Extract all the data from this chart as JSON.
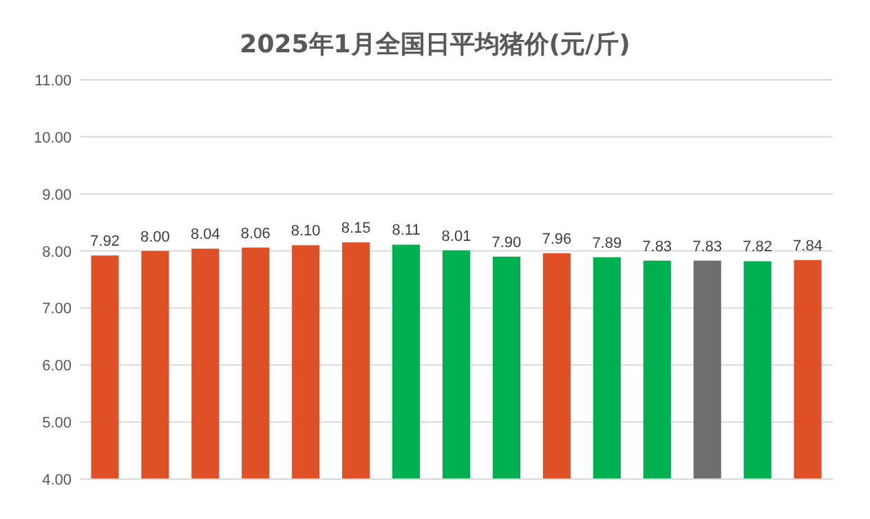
{
  "chart_data": {
    "type": "bar",
    "title": "2025年1月全国日平均猪价(元/斤)",
    "categories": [
      null,
      null,
      null,
      null,
      null,
      null,
      null,
      null,
      null,
      null,
      null,
      null,
      null,
      null,
      null
    ],
    "values": [
      7.92,
      8.0,
      8.04,
      8.06,
      8.1,
      8.15,
      8.11,
      8.01,
      7.9,
      7.96,
      7.89,
      7.83,
      7.83,
      7.82,
      7.84
    ],
    "value_labels": [
      "7.92",
      "8.00",
      "8.04",
      "8.06",
      "8.10",
      "8.15",
      "8.11",
      "8.01",
      "7.90",
      "7.96",
      "7.89",
      "7.83",
      "7.83",
      "7.82",
      "7.84"
    ],
    "colors": [
      "#e05026",
      "#e05026",
      "#e05026",
      "#e05026",
      "#e05026",
      "#e05026",
      "#00b050",
      "#00b050",
      "#00b050",
      "#e05026",
      "#00b050",
      "#00b050",
      "#6e6e6e",
      "#00b050",
      "#e05026"
    ],
    "ylim": [
      4,
      11
    ],
    "yticks": [
      {
        "value": 4,
        "label": "4.00"
      },
      {
        "value": 5,
        "label": "5.00"
      },
      {
        "value": 6,
        "label": "6.00"
      },
      {
        "value": 7,
        "label": "7.00"
      },
      {
        "value": 8,
        "label": "8.00"
      },
      {
        "value": 9,
        "label": "9.00"
      },
      {
        "value": 10,
        "label": "10.00"
      },
      {
        "value": 11,
        "label": "11.00"
      }
    ],
    "grid": "y"
  }
}
